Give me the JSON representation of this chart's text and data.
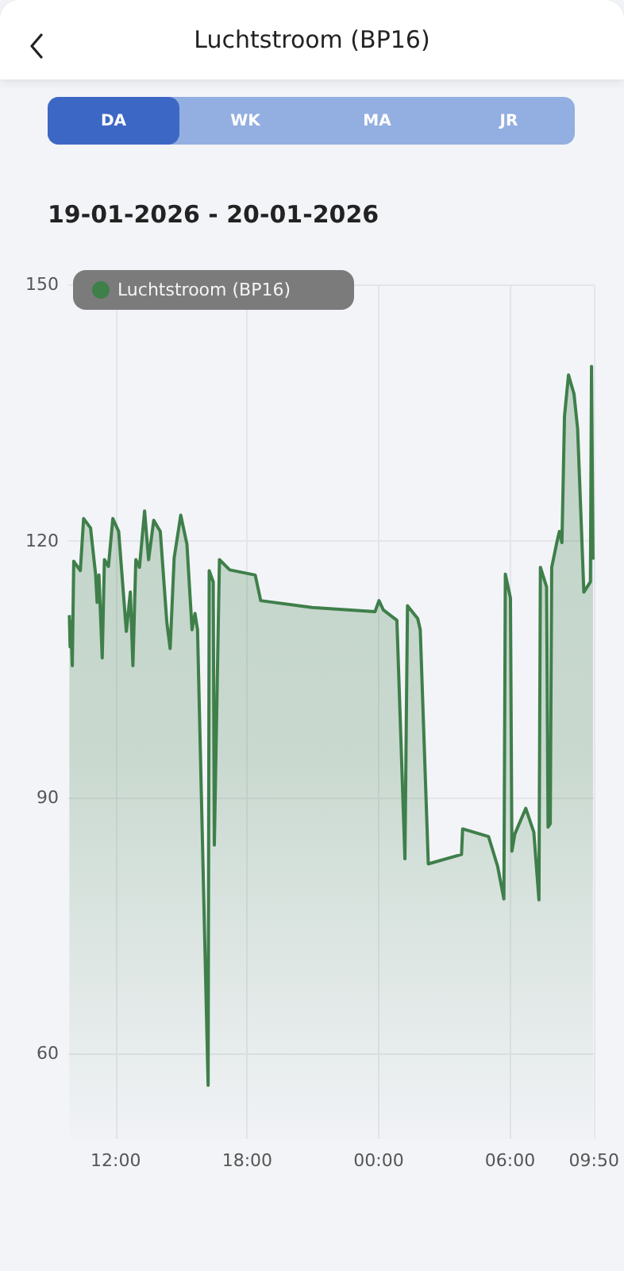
{
  "chart_data": {
    "type": "area",
    "title": "Luchtstroom (BP16)",
    "subtitle": "19-01-2026 - 20-01-2026",
    "annotations": [
      "DA",
      "WK",
      "MA",
      "JR"
    ],
    "xlim": [
      "2026-01-19T09:50",
      "2026-01-20T09:50"
    ],
    "ylim": [
      50,
      150
    ],
    "yticks": [
      60,
      90,
      120,
      150
    ],
    "xticks": [
      {
        "value": "2026-01-19T12:00",
        "label": "12:00"
      },
      {
        "value": "2026-01-19T18:00",
        "label": "18:00"
      },
      {
        "value": "2026-01-20T00:00",
        "label": "00:00"
      },
      {
        "value": "2026-01-20T06:00",
        "label": "06:00"
      },
      {
        "value": "2026-01-20T09:50",
        "label": "09:50"
      }
    ],
    "grid": true,
    "legend": "top left",
    "marker": "none",
    "series": [
      {
        "name": "Luchtstroom (BP16)",
        "color": "#3f7f4a",
        "x": [
          "2026-01-19T09:53",
          "2026-01-19T09:55",
          "2026-01-19T09:57",
          "2026-01-19T10:01",
          "2026-01-19T10:05",
          "2026-01-19T10:23",
          "2026-01-19T10:32",
          "2026-01-19T10:51",
          "2026-01-19T11:05",
          "2026-01-19T11:09",
          "2026-01-19T11:14",
          "2026-01-19T11:23",
          "2026-01-19T11:29",
          "2026-01-19T11:40",
          "2026-01-19T11:52",
          "2026-01-19T12:08",
          "2026-01-19T12:29",
          "2026-01-19T12:40",
          "2026-01-19T12:47",
          "2026-01-19T12:55",
          "2026-01-19T13:05",
          "2026-01-19T13:19",
          "2026-01-19T13:30",
          "2026-01-19T13:44",
          "2026-01-19T14:02",
          "2026-01-19T14:20",
          "2026-01-19T14:29",
          "2026-01-19T14:40",
          "2026-01-19T14:58",
          "2026-01-19T15:15",
          "2026-01-19T15:29",
          "2026-01-19T15:37",
          "2026-01-19T15:44",
          "2026-01-19T16:13",
          "2026-01-19T16:16",
          "2026-01-19T16:27",
          "2026-01-19T16:30",
          "2026-01-19T16:44",
          "2026-01-19T17:12",
          "2026-01-19T18:22",
          "2026-01-19T18:37",
          "2026-01-19T20:58",
          "2026-01-19T23:50",
          "2026-01-20T00:01",
          "2026-01-20T00:13",
          "2026-01-20T00:50",
          "2026-01-20T01:12",
          "2026-01-20T01:19",
          "2026-01-20T01:47",
          "2026-01-20T01:54",
          "2026-01-20T02:16",
          "2026-01-20T03:47",
          "2026-01-20T03:50",
          "2026-01-20T05:01",
          "2026-01-20T05:26",
          "2026-01-20T05:43",
          "2026-01-20T05:47",
          "2026-01-20T06:01",
          "2026-01-20T06:05",
          "2026-01-20T06:13",
          "2026-01-20T06:43",
          "2026-01-20T07:05",
          "2026-01-20T07:19",
          "2026-01-20T07:23",
          "2026-01-20T07:40",
          "2026-01-20T07:44",
          "2026-01-20T07:50",
          "2026-01-20T07:54",
          "2026-01-20T08:08",
          "2026-01-20T08:15",
          "2026-01-20T08:22",
          "2026-01-20T08:29",
          "2026-01-20T08:40",
          "2026-01-20T08:55",
          "2026-01-20T09:05",
          "2026-01-20T09:22",
          "2026-01-20T09:40",
          "2026-01-20T09:43",
          "2026-01-20T09:47"
        ],
        "values": [
          111.3,
          107.6,
          110.6,
          105.4,
          117.6,
          116.5,
          122.6,
          121.5,
          116,
          112.8,
          116,
          106.3,
          117.8,
          117,
          122.6,
          121.1,
          109.4,
          114,
          105.4,
          117.8,
          116.9,
          123.5,
          117.8,
          122.4,
          121.1,
          110.4,
          107.4,
          118,
          123,
          119.6,
          109.6,
          111.5,
          109.6,
          56.3,
          116.5,
          115.2,
          84.4,
          117.8,
          116.6,
          116,
          113,
          112.2,
          111.7,
          113,
          111.9,
          110.7,
          82.8,
          112.4,
          110.9,
          109.6,
          82.2,
          83.3,
          86.3,
          85.4,
          81.9,
          78.1,
          116.1,
          113.3,
          83.7,
          85.7,
          88.7,
          85.9,
          78,
          116.9,
          114.6,
          86.5,
          86.9,
          116.9,
          119.8,
          121.1,
          119.8,
          134.6,
          139.4,
          137.2,
          133.1,
          114,
          115.2,
          140.4,
          117.8
        ]
      }
    ]
  }
}
